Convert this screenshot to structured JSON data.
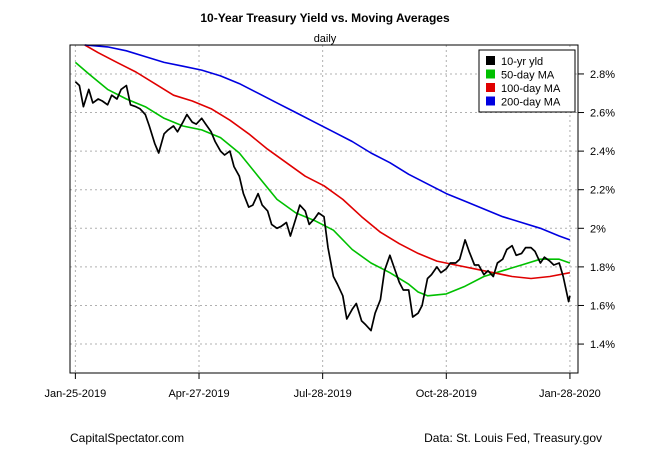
{
  "header": {
    "title": "10-Year Treasury Yield vs. Moving Averages",
    "subtitle": "daily"
  },
  "footer": {
    "left": "CapitalSpectator.com",
    "right": "Data: St. Louis Fed, Treasury.gov"
  },
  "chart_data": {
    "type": "line",
    "title": "10-Year Treasury Yield vs. Moving Averages",
    "subtitle": "daily",
    "xlabel": "",
    "ylabel": "",
    "x_ticks": [
      "Jan-25-2019",
      "Apr-27-2019",
      "Jul-28-2019",
      "Oct-28-2019",
      "Jan-28-2020"
    ],
    "y_ticks": [
      1.4,
      1.6,
      1.8,
      2.0,
      2.2,
      2.4,
      2.6,
      2.8
    ],
    "y_tick_labels": [
      "1.4%",
      "1.6%",
      "1.8%",
      "2%",
      "2.2%",
      "2.4%",
      "2.6%",
      "2.8%"
    ],
    "ylim": [
      1.25,
      2.95
    ],
    "xlim": [
      "2019-01-21",
      "2020-02-03"
    ],
    "grid": true,
    "y_axis_side": "right",
    "legend_position": "top-right",
    "series": [
      {
        "name": "10-yr yld",
        "color": "#000000",
        "x": [
          "2019-01-25",
          "2019-01-28",
          "2019-01-31",
          "2019-02-04",
          "2019-02-07",
          "2019-02-11",
          "2019-02-14",
          "2019-02-18",
          "2019-02-21",
          "2019-02-25",
          "2019-02-28",
          "2019-03-04",
          "2019-03-07",
          "2019-03-11",
          "2019-03-14",
          "2019-03-18",
          "2019-03-21",
          "2019-03-25",
          "2019-03-28",
          "2019-04-01",
          "2019-04-04",
          "2019-04-08",
          "2019-04-11",
          "2019-04-15",
          "2019-04-18",
          "2019-04-22",
          "2019-04-25",
          "2019-04-29",
          "2019-05-02",
          "2019-05-06",
          "2019-05-09",
          "2019-05-13",
          "2019-05-16",
          "2019-05-20",
          "2019-05-23",
          "2019-05-27",
          "2019-05-30",
          "2019-06-03",
          "2019-06-06",
          "2019-06-10",
          "2019-06-13",
          "2019-06-17",
          "2019-06-20",
          "2019-06-24",
          "2019-06-27",
          "2019-07-01",
          "2019-07-04",
          "2019-07-08",
          "2019-07-11",
          "2019-07-15",
          "2019-07-18",
          "2019-07-22",
          "2019-07-25",
          "2019-07-29",
          "2019-08-01",
          "2019-08-05",
          "2019-08-08",
          "2019-08-12",
          "2019-08-15",
          "2019-08-19",
          "2019-08-22",
          "2019-08-26",
          "2019-08-29",
          "2019-09-02",
          "2019-09-05",
          "2019-09-09",
          "2019-09-12",
          "2019-09-16",
          "2019-09-19",
          "2019-09-23",
          "2019-09-26",
          "2019-09-30",
          "2019-10-03",
          "2019-10-07",
          "2019-10-10",
          "2019-10-14",
          "2019-10-17",
          "2019-10-21",
          "2019-10-24",
          "2019-10-28",
          "2019-10-31",
          "2019-11-04",
          "2019-11-07",
          "2019-11-11",
          "2019-11-14",
          "2019-11-18",
          "2019-11-21",
          "2019-11-25",
          "2019-11-28",
          "2019-12-02",
          "2019-12-05",
          "2019-12-09",
          "2019-12-12",
          "2019-12-16",
          "2019-12-19",
          "2019-12-23",
          "2019-12-26",
          "2019-12-30",
          "2020-01-02",
          "2020-01-06",
          "2020-01-09",
          "2020-01-13",
          "2020-01-16",
          "2020-01-20",
          "2020-01-23",
          "2020-01-27",
          "2020-01-28"
        ],
        "values": [
          2.76,
          2.74,
          2.63,
          2.72,
          2.65,
          2.67,
          2.66,
          2.64,
          2.69,
          2.67,
          2.72,
          2.74,
          2.64,
          2.63,
          2.62,
          2.59,
          2.53,
          2.44,
          2.39,
          2.49,
          2.51,
          2.53,
          2.5,
          2.55,
          2.59,
          2.55,
          2.54,
          2.57,
          2.54,
          2.5,
          2.45,
          2.4,
          2.38,
          2.4,
          2.32,
          2.27,
          2.18,
          2.11,
          2.12,
          2.18,
          2.12,
          2.09,
          2.02,
          2.0,
          2.01,
          2.03,
          1.96,
          2.05,
          2.12,
          2.09,
          2.02,
          2.05,
          2.08,
          2.06,
          1.9,
          1.75,
          1.71,
          1.65,
          1.53,
          1.58,
          1.61,
          1.52,
          1.5,
          1.47,
          1.56,
          1.63,
          1.78,
          1.86,
          1.8,
          1.72,
          1.68,
          1.68,
          1.54,
          1.56,
          1.6,
          1.74,
          1.76,
          1.8,
          1.77,
          1.79,
          1.82,
          1.82,
          1.84,
          1.94,
          1.88,
          1.81,
          1.81,
          1.76,
          1.78,
          1.75,
          1.82,
          1.84,
          1.89,
          1.91,
          1.86,
          1.87,
          1.9,
          1.9,
          1.88,
          1.82,
          1.85,
          1.83,
          1.81,
          1.82,
          1.75,
          1.62,
          1.65
        ]
      },
      {
        "name": "50-day MA",
        "color": "#00c000",
        "x": [
          "2019-01-25",
          "2019-02-04",
          "2019-02-18",
          "2019-03-04",
          "2019-03-18",
          "2019-04-01",
          "2019-04-15",
          "2019-04-29",
          "2019-05-13",
          "2019-05-27",
          "2019-06-10",
          "2019-06-24",
          "2019-07-08",
          "2019-07-22",
          "2019-08-05",
          "2019-08-19",
          "2019-09-02",
          "2019-09-16",
          "2019-09-30",
          "2019-10-07",
          "2019-10-14",
          "2019-10-28",
          "2019-11-11",
          "2019-11-25",
          "2019-12-09",
          "2019-12-23",
          "2020-01-06",
          "2020-01-20",
          "2020-01-28"
        ],
        "values": [
          2.86,
          2.8,
          2.72,
          2.67,
          2.63,
          2.57,
          2.53,
          2.51,
          2.47,
          2.39,
          2.27,
          2.15,
          2.08,
          2.04,
          1.99,
          1.89,
          1.82,
          1.77,
          1.71,
          1.67,
          1.65,
          1.66,
          1.7,
          1.75,
          1.78,
          1.81,
          1.84,
          1.84,
          1.82
        ]
      },
      {
        "name": "100-day MA",
        "color": "#e00000",
        "x": [
          "2019-02-01",
          "2019-02-11",
          "2019-02-25",
          "2019-03-11",
          "2019-03-25",
          "2019-04-08",
          "2019-04-22",
          "2019-05-06",
          "2019-05-20",
          "2019-06-03",
          "2019-06-17",
          "2019-07-01",
          "2019-07-15",
          "2019-07-29",
          "2019-08-12",
          "2019-08-26",
          "2019-09-09",
          "2019-09-23",
          "2019-10-07",
          "2019-10-21",
          "2019-11-04",
          "2019-11-18",
          "2019-12-02",
          "2019-12-16",
          "2019-12-30",
          "2020-01-13",
          "2020-01-28"
        ],
        "values": [
          2.95,
          2.91,
          2.86,
          2.81,
          2.75,
          2.69,
          2.66,
          2.62,
          2.56,
          2.49,
          2.41,
          2.34,
          2.27,
          2.22,
          2.15,
          2.06,
          1.98,
          1.92,
          1.87,
          1.83,
          1.81,
          1.79,
          1.77,
          1.75,
          1.74,
          1.75,
          1.77
        ]
      },
      {
        "name": "200-day MA",
        "color": "#0000e0",
        "x": [
          "2019-02-01",
          "2019-02-18",
          "2019-03-04",
          "2019-03-18",
          "2019-04-01",
          "2019-04-15",
          "2019-04-29",
          "2019-05-13",
          "2019-05-27",
          "2019-06-10",
          "2019-06-24",
          "2019-07-08",
          "2019-07-22",
          "2019-08-05",
          "2019-08-19",
          "2019-09-02",
          "2019-09-16",
          "2019-09-30",
          "2019-10-14",
          "2019-10-28",
          "2019-11-11",
          "2019-11-25",
          "2019-12-09",
          "2019-12-23",
          "2020-01-06",
          "2020-01-20",
          "2020-01-28"
        ],
        "values": [
          2.95,
          2.94,
          2.92,
          2.89,
          2.86,
          2.84,
          2.82,
          2.79,
          2.75,
          2.7,
          2.65,
          2.6,
          2.55,
          2.5,
          2.45,
          2.39,
          2.34,
          2.28,
          2.23,
          2.18,
          2.14,
          2.1,
          2.06,
          2.03,
          2.0,
          1.96,
          1.94
        ]
      }
    ]
  }
}
